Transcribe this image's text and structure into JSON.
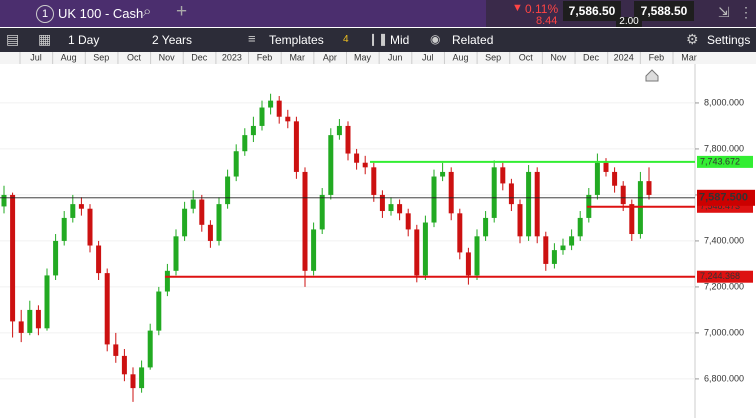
{
  "header": {
    "tab_number": "1",
    "instrument": "UK 100 - Cash",
    "change_pct": "0.11%",
    "change": "8.44",
    "sell": "7,586.50",
    "buy": "7,588.50",
    "spread": "2.00"
  },
  "toolbar": {
    "interval": "1 Day",
    "range": "2 Years",
    "templates": "Templates",
    "templates_count": "4",
    "price_type": "Mid",
    "related": "Related",
    "settings": "Settings"
  },
  "chart_data": {
    "type": "candlestick",
    "x_labels": [
      "Jul",
      "Aug",
      "Sep",
      "Oct",
      "Nov",
      "Dec",
      "2023",
      "Feb",
      "Mar",
      "Apr",
      "May",
      "Jun",
      "Jul",
      "Aug",
      "Sep",
      "Oct",
      "Nov",
      "Dec",
      "2024",
      "Feb",
      "Mar"
    ],
    "ylim": [
      6630,
      8178
    ],
    "yticks": [
      {
        "value": 6800,
        "label": "6,800.000"
      },
      {
        "value": 7000,
        "label": "7,000.000"
      },
      {
        "value": 7200,
        "label": "7,200.000"
      },
      {
        "value": 7400,
        "label": "7,400.000"
      },
      {
        "value": 7600,
        "label": "7,600.000"
      },
      {
        "value": 7800,
        "label": "7,800.000"
      },
      {
        "value": 8000,
        "label": "8,000.000"
      }
    ],
    "up_color": "#22aa22",
    "down_color": "#cc1111",
    "candles": [
      [
        7550,
        7640,
        7520,
        7600
      ],
      [
        7600,
        7610,
        6980,
        7050
      ],
      [
        7050,
        7100,
        6960,
        7000
      ],
      [
        7000,
        7140,
        6990,
        7100
      ],
      [
        7100,
        7120,
        6990,
        7020
      ],
      [
        7020,
        7280,
        7010,
        7250
      ],
      [
        7250,
        7430,
        7230,
        7400
      ],
      [
        7400,
        7530,
        7380,
        7500
      ],
      [
        7500,
        7600,
        7480,
        7560
      ],
      [
        7560,
        7590,
        7510,
        7540
      ],
      [
        7540,
        7560,
        7350,
        7380
      ],
      [
        7380,
        7400,
        7230,
        7260
      ],
      [
        7260,
        7280,
        6920,
        6950
      ],
      [
        6950,
        7000,
        6870,
        6900
      ],
      [
        6900,
        6930,
        6790,
        6820
      ],
      [
        6820,
        6850,
        6700,
        6760
      ],
      [
        6760,
        6880,
        6740,
        6850
      ],
      [
        6850,
        7040,
        6840,
        7010
      ],
      [
        7010,
        7200,
        6990,
        7180
      ],
      [
        7180,
        7300,
        7160,
        7270
      ],
      [
        7270,
        7450,
        7250,
        7420
      ],
      [
        7420,
        7570,
        7400,
        7540
      ],
      [
        7540,
        7620,
        7520,
        7580
      ],
      [
        7580,
        7600,
        7440,
        7470
      ],
      [
        7470,
        7490,
        7370,
        7400
      ],
      [
        7400,
        7590,
        7380,
        7560
      ],
      [
        7560,
        7710,
        7540,
        7680
      ],
      [
        7680,
        7820,
        7660,
        7790
      ],
      [
        7790,
        7890,
        7770,
        7860
      ],
      [
        7860,
        7940,
        7830,
        7900
      ],
      [
        7900,
        8010,
        7880,
        7980
      ],
      [
        7980,
        8040,
        7950,
        8010
      ],
      [
        8010,
        8030,
        7910,
        7940
      ],
      [
        7940,
        7970,
        7890,
        7920
      ],
      [
        7920,
        7940,
        7670,
        7700
      ],
      [
        7700,
        7720,
        7200,
        7270
      ],
      [
        7270,
        7480,
        7250,
        7450
      ],
      [
        7450,
        7630,
        7430,
        7600
      ],
      [
        7600,
        7890,
        7580,
        7860
      ],
      [
        7860,
        7930,
        7840,
        7900
      ],
      [
        7900,
        7920,
        7750,
        7780
      ],
      [
        7780,
        7800,
        7710,
        7740
      ],
      [
        7740,
        7770,
        7690,
        7720
      ],
      [
        7720,
        7740,
        7570,
        7600
      ],
      [
        7600,
        7620,
        7500,
        7530
      ],
      [
        7530,
        7590,
        7510,
        7560
      ],
      [
        7560,
        7580,
        7490,
        7520
      ],
      [
        7520,
        7540,
        7420,
        7450
      ],
      [
        7450,
        7470,
        7220,
        7250
      ],
      [
        7250,
        7510,
        7230,
        7480
      ],
      [
        7480,
        7710,
        7460,
        7680
      ],
      [
        7680,
        7740,
        7660,
        7700
      ],
      [
        7700,
        7720,
        7490,
        7520
      ],
      [
        7520,
        7540,
        7320,
        7350
      ],
      [
        7350,
        7370,
        7210,
        7250
      ],
      [
        7250,
        7450,
        7230,
        7420
      ],
      [
        7420,
        7530,
        7400,
        7500
      ],
      [
        7500,
        7750,
        7480,
        7720
      ],
      [
        7720,
        7740,
        7620,
        7650
      ],
      [
        7650,
        7670,
        7530,
        7560
      ],
      [
        7560,
        7580,
        7390,
        7420
      ],
      [
        7420,
        7730,
        7400,
        7700
      ],
      [
        7700,
        7720,
        7390,
        7420
      ],
      [
        7420,
        7440,
        7270,
        7300
      ],
      [
        7300,
        7390,
        7280,
        7360
      ],
      [
        7360,
        7410,
        7340,
        7380
      ],
      [
        7380,
        7450,
        7360,
        7420
      ],
      [
        7420,
        7530,
        7400,
        7500
      ],
      [
        7500,
        7630,
        7480,
        7600
      ],
      [
        7600,
        7780,
        7580,
        7740
      ],
      [
        7740,
        7760,
        7680,
        7700
      ],
      [
        7700,
        7720,
        7610,
        7640
      ],
      [
        7640,
        7660,
        7530,
        7560
      ],
      [
        7560,
        7580,
        7400,
        7430
      ],
      [
        7430,
        7700,
        7410,
        7660
      ],
      [
        7660,
        7720,
        7580,
        7600
      ]
    ],
    "levels": [
      {
        "value": 7743.672,
        "label": "7,743.672",
        "color": "#33ee33"
      },
      {
        "value": 7548.473,
        "label": "7,548.473",
        "color": "#dd1111"
      },
      {
        "value": 7244.368,
        "label": "7,244.368",
        "color": "#dd1111"
      }
    ],
    "current_price": {
      "value": 7587.5,
      "label": "7,587.500",
      "color": "#cc0000"
    }
  }
}
